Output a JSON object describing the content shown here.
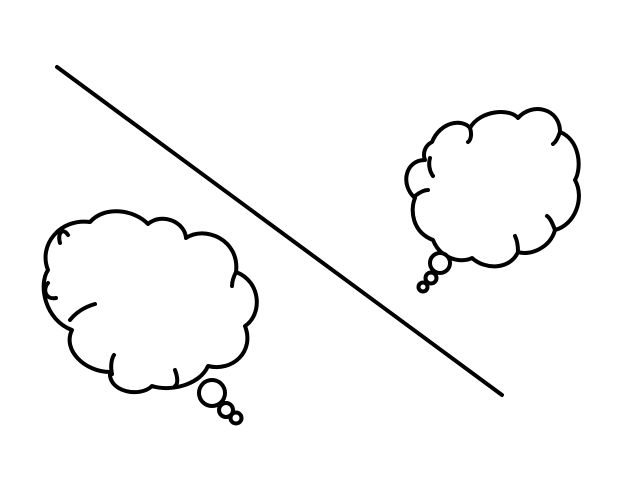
{
  "scene": {
    "background_color": "#ffffff",
    "stroke_color": "#000000",
    "elements": [
      {
        "kind": "divider-line",
        "name": "diagonal-divider"
      },
      {
        "kind": "thought-bubble",
        "name": "thought-bubble-left",
        "text": ""
      },
      {
        "kind": "thought-bubble",
        "name": "thought-bubble-right",
        "text": ""
      }
    ]
  }
}
